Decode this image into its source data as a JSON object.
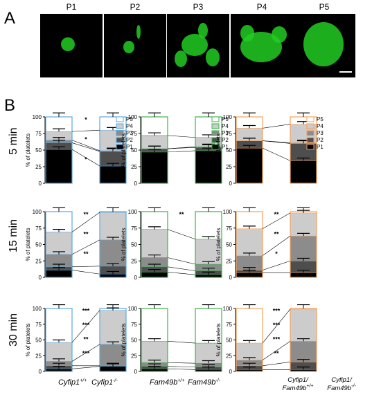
{
  "panel_labels": {
    "a": "A",
    "b": "B"
  },
  "microscopy": {
    "labels": [
      "P1",
      "P2",
      "P3",
      "P4",
      "P5"
    ]
  },
  "row_labels": [
    "5 min",
    "15 min",
    "30 min"
  ],
  "y_axis_label": "% of platelets",
  "y_ticks": [
    "0",
    "25",
    "50",
    "75",
    "100"
  ],
  "legend_labels": [
    "P5",
    "P4",
    "P3",
    "P2",
    "P1"
  ],
  "colors": {
    "P1": "#000000",
    "P2": "#4e4e4e",
    "P3": "#8c8c8c",
    "P4": "#cccccc",
    "P5": "#ffffff",
    "cyfip_outline": "#5aa8e0",
    "fam49b_outline": "#39b54a",
    "double_outline": "#f5a05a",
    "microscopy_green": "#22cc22"
  },
  "x_labels": {
    "col1": [
      "Cyfip1",
      "+/+",
      "Cyfip1",
      "-/-"
    ],
    "col2": [
      "Fam49b",
      "+/+",
      "Fam49b",
      "-/-"
    ],
    "col3": [
      "Cyfip1/",
      "Fam49b",
      "+/+",
      "Cyfip1/",
      "Fam49b",
      "-/-"
    ]
  },
  "chart_data": [
    {
      "type": "bar",
      "row": "5 min",
      "group": "Cyfip1",
      "categories": [
        "Cyfip1+/+",
        "Cyfip1-/-"
      ],
      "series": [
        {
          "name": "P1",
          "values": [
            51,
            26
          ]
        },
        {
          "name": "P2",
          "values": [
            10,
            22
          ]
        },
        {
          "name": "P3",
          "values": [
            4,
            1
          ]
        },
        {
          "name": "P4",
          "values": [
            13,
            31
          ]
        },
        {
          "name": "P5",
          "values": [
            22,
            20
          ]
        }
      ],
      "significance": [
        "*",
        "*",
        "*"
      ],
      "ylim": [
        0,
        100
      ]
    },
    {
      "type": "bar",
      "row": "5 min",
      "group": "Fam49b",
      "categories": [
        "Fam49b+/+",
        "Fam49b-/-"
      ],
      "series": [
        {
          "name": "P1",
          "values": [
            47,
            49
          ]
        },
        {
          "name": "P2",
          "values": [
            5,
            5
          ]
        },
        {
          "name": "P3",
          "values": [
            0,
            1
          ]
        },
        {
          "name": "P4",
          "values": [
            20,
            14
          ]
        },
        {
          "name": "P5",
          "values": [
            28,
            31
          ]
        }
      ],
      "significance": [],
      "ylim": [
        0,
        100
      ]
    },
    {
      "type": "bar",
      "row": "5 min",
      "group": "Cyfip1/Fam49b",
      "categories": [
        "Cyfip1/Fam49b+/+",
        "Cyfip1/Fam49b-/-"
      ],
      "series": [
        {
          "name": "P1",
          "values": [
            53,
            34
          ]
        },
        {
          "name": "P2",
          "values": [
            11,
            26
          ]
        },
        {
          "name": "P3",
          "values": [
            0,
            1
          ]
        },
        {
          "name": "P4",
          "values": [
            19,
            28
          ]
        },
        {
          "name": "P5",
          "values": [
            17,
            11
          ]
        }
      ],
      "significance": [],
      "ylim": [
        0,
        100
      ]
    },
    {
      "type": "bar",
      "row": "15 min",
      "group": "Cyfip1",
      "categories": [
        "Cyfip1+/+",
        "Cyfip1-/-"
      ],
      "series": [
        {
          "name": "P1",
          "values": [
            11,
            5
          ]
        },
        {
          "name": "P2",
          "values": [
            5,
            12
          ]
        },
        {
          "name": "P3",
          "values": [
            19,
            40
          ]
        },
        {
          "name": "P4",
          "values": [
            34,
            42
          ]
        },
        {
          "name": "P5",
          "values": [
            31,
            1
          ]
        }
      ],
      "significance": [
        "**",
        "**",
        "**"
      ],
      "ylim": [
        0,
        100
      ]
    },
    {
      "type": "bar",
      "row": "15 min",
      "group": "Fam49b",
      "categories": [
        "Fam49b+/+",
        "Fam49b-/-"
      ],
      "series": [
        {
          "name": "P1",
          "values": [
            8,
            4
          ]
        },
        {
          "name": "P2",
          "values": [
            8,
            6
          ]
        },
        {
          "name": "P3",
          "values": [
            14,
            10
          ]
        },
        {
          "name": "P4",
          "values": [
            43,
            38
          ]
        },
        {
          "name": "P5",
          "values": [
            27,
            42
          ]
        }
      ],
      "significance": [
        "**"
      ],
      "ylim": [
        0,
        100
      ]
    },
    {
      "type": "bar",
      "row": "15 min",
      "group": "Cyfip1/Fam49b",
      "categories": [
        "Cyfip1/Fam49b+/+",
        "Cyfip1/Fam49b-/-"
      ],
      "series": [
        {
          "name": "P1",
          "values": [
            7,
            7
          ]
        },
        {
          "name": "P2",
          "values": [
            4,
            18
          ]
        },
        {
          "name": "P3",
          "values": [
            22,
            38
          ]
        },
        {
          "name": "P4",
          "values": [
            41,
            35
          ]
        },
        {
          "name": "P5",
          "values": [
            26,
            2
          ]
        }
      ],
      "significance": [
        "**",
        "**",
        "*"
      ],
      "ylim": [
        0,
        100
      ]
    },
    {
      "type": "bar",
      "row": "30 min",
      "group": "Cyfip1",
      "categories": [
        "Cyfip1+/+",
        "Cyfip1-/-"
      ],
      "series": [
        {
          "name": "P1",
          "values": [
            4,
            8
          ]
        },
        {
          "name": "P2",
          "values": [
            5,
            1
          ]
        },
        {
          "name": "P3",
          "values": [
            7,
            34
          ]
        },
        {
          "name": "P4",
          "values": [
            30,
            54
          ]
        },
        {
          "name": "P5",
          "values": [
            54,
            3
          ]
        }
      ],
      "significance": [
        "***",
        "***",
        "**",
        "***"
      ],
      "ylim": [
        0,
        100
      ]
    },
    {
      "type": "bar",
      "row": "30 min",
      "group": "Fam49b",
      "categories": [
        "Fam49b+/+",
        "Fam49b-/-"
      ],
      "series": [
        {
          "name": "P1",
          "values": [
            4,
            3
          ]
        },
        {
          "name": "P2",
          "values": [
            4,
            4
          ]
        },
        {
          "name": "P3",
          "values": [
            6,
            6
          ]
        },
        {
          "name": "P4",
          "values": [
            34,
            32
          ]
        },
        {
          "name": "P5",
          "values": [
            52,
            55
          ]
        }
      ],
      "significance": [],
      "ylim": [
        0,
        100
      ]
    },
    {
      "type": "bar",
      "row": "30 min",
      "group": "Cyfip1/Fam49b",
      "categories": [
        "Cyfip1/Fam49b+/+",
        "Cyfip1/Fam49b-/-"
      ],
      "series": [
        {
          "name": "P1",
          "values": [
            3,
            3
          ]
        },
        {
          "name": "P2",
          "values": [
            6,
            12
          ]
        },
        {
          "name": "P3",
          "values": [
            9,
            33
          ]
        },
        {
          "name": "P4",
          "values": [
            27,
            51
          ]
        },
        {
          "name": "P5",
          "values": [
            55,
            1
          ]
        }
      ],
      "significance": [
        "***",
        "***",
        "***",
        "**"
      ],
      "ylim": [
        0,
        100
      ]
    }
  ]
}
